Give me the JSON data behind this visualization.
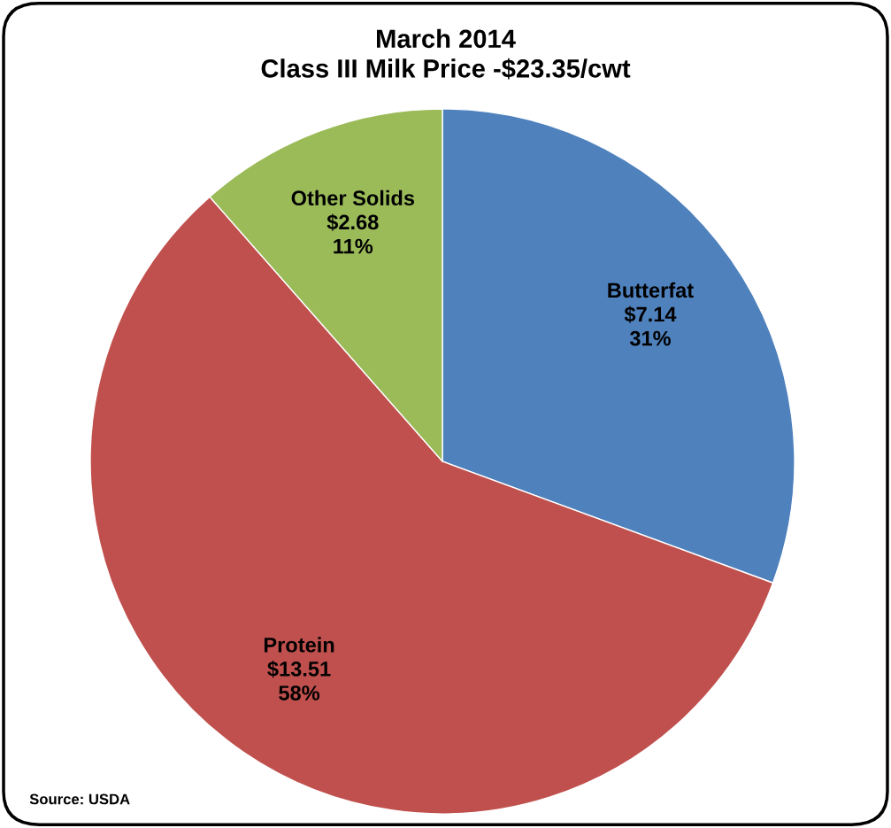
{
  "chart_data": {
    "type": "pie",
    "title": "March 2014\nClass III Milk Price -$23.35/cwt",
    "categories": [
      "Butterfat",
      "Protein",
      "Other Solids"
    ],
    "values": [
      7.14,
      13.51,
      2.68
    ],
    "colors": [
      "#4f81bd",
      "#c0504d",
      "#9bbb59"
    ],
    "value_labels": [
      "$7.14\n31%",
      "$13.51\n58%",
      "$2.68\n11%"
    ],
    "annotations": [
      "Source: USDA"
    ],
    "legend": false
  }
}
